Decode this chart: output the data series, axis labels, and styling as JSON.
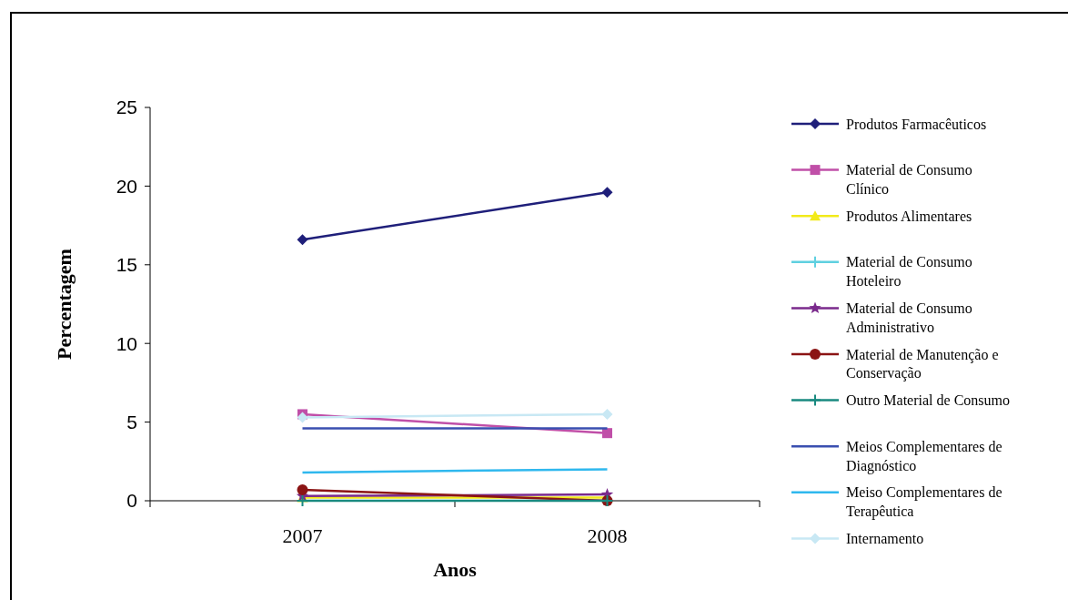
{
  "chart_data": {
    "type": "line",
    "xlabel": "Anos",
    "ylabel": "Percentagem",
    "categories": [
      "2007",
      "2008"
    ],
    "ylim": [
      0,
      25
    ],
    "yticks": [
      0,
      5,
      10,
      15,
      20,
      25
    ],
    "grid": false,
    "legend": "right",
    "series": [
      {
        "name": "Produtos Farmacêuticos",
        "color": "#1f1f7a",
        "marker": "diamond",
        "values": [
          16.6,
          19.6
        ]
      },
      {
        "name": "Material de Consumo Clínico",
        "color": "#c04fa8",
        "marker": "square",
        "values": [
          5.5,
          4.3
        ]
      },
      {
        "name": "Produtos Alimentares",
        "color": "#f2ea1a",
        "marker": "triangle",
        "values": [
          0.2,
          0.2
        ]
      },
      {
        "name": "Material de Consumo Hoteleiro",
        "color": "#5fd0e0",
        "marker": "cross",
        "values": [
          null,
          null
        ]
      },
      {
        "name": "Material de Consumo Administrativo",
        "color": "#7a2a8c",
        "marker": "star",
        "values": [
          0.3,
          0.4
        ]
      },
      {
        "name": "Material de Manutenção e Conservação",
        "color": "#8b1414",
        "marker": "circle",
        "values": [
          0.7,
          0
        ]
      },
      {
        "name": "Outro Material de Consumo",
        "color": "#1a8a80",
        "marker": "cross",
        "values": [
          0,
          0
        ]
      },
      {
        "name": "Meios Complementares de Diagnóstico",
        "color": "#3a4fb0",
        "marker": "none",
        "values": [
          4.6,
          4.6
        ]
      },
      {
        "name": "Meiso Complementares de Terapêutica",
        "color": "#2fb8ee",
        "marker": "none",
        "values": [
          1.8,
          2.0
        ]
      },
      {
        "name": "Internamento",
        "color": "#c8e8f4",
        "marker": "diamond",
        "values": [
          5.3,
          5.5
        ]
      }
    ]
  }
}
